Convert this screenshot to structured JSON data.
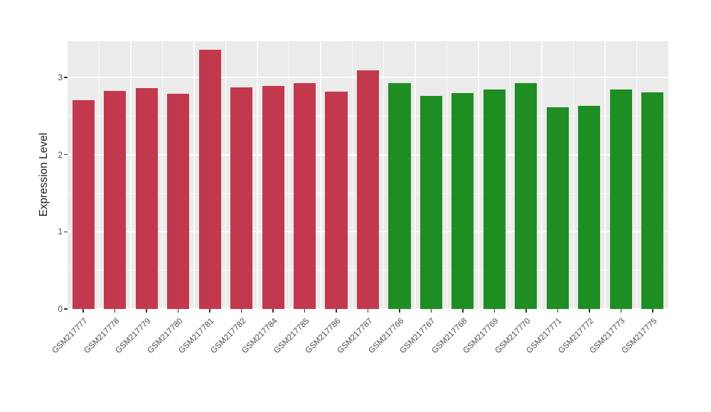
{
  "chart_data": {
    "type": "bar",
    "title": "",
    "xlabel": "",
    "ylabel": "Expression Level",
    "ylim": [
      0,
      3.47
    ],
    "yticks": [
      0,
      1,
      2,
      3
    ],
    "yticks_minor": [
      0.5,
      1.5,
      2.5
    ],
    "grid": "on",
    "legend_position": "none",
    "x_tick_label_rotation": 45,
    "bar_width_ratio": 0.7,
    "panel_bg": "#EBEBEB",
    "grid_major_color": "#FFFFFF",
    "tick_text_color": "#4D4D4D",
    "categories": [
      "GSM217777",
      "GSM217778",
      "GSM217779",
      "GSM217780",
      "GSM217781",
      "GSM217782",
      "GSM217784",
      "GSM217785",
      "GSM217786",
      "GSM217787",
      "GSM217766",
      "GSM217767",
      "GSM217768",
      "GSM217769",
      "GSM217770",
      "GSM217771",
      "GSM217772",
      "GSM217773",
      "GSM217775"
    ],
    "values": [
      2.71,
      2.83,
      2.86,
      2.79,
      3.36,
      2.87,
      2.89,
      2.93,
      2.82,
      3.09,
      2.93,
      2.76,
      2.8,
      2.84,
      2.93,
      2.61,
      2.63,
      2.84,
      2.81
    ],
    "group_of": [
      "red",
      "red",
      "red",
      "red",
      "red",
      "red",
      "red",
      "red",
      "red",
      "red",
      "green",
      "green",
      "green",
      "green",
      "green",
      "green",
      "green",
      "green",
      "green"
    ],
    "group_colors": {
      "red": "#C2394E",
      "green": "#1E8E23"
    }
  }
}
